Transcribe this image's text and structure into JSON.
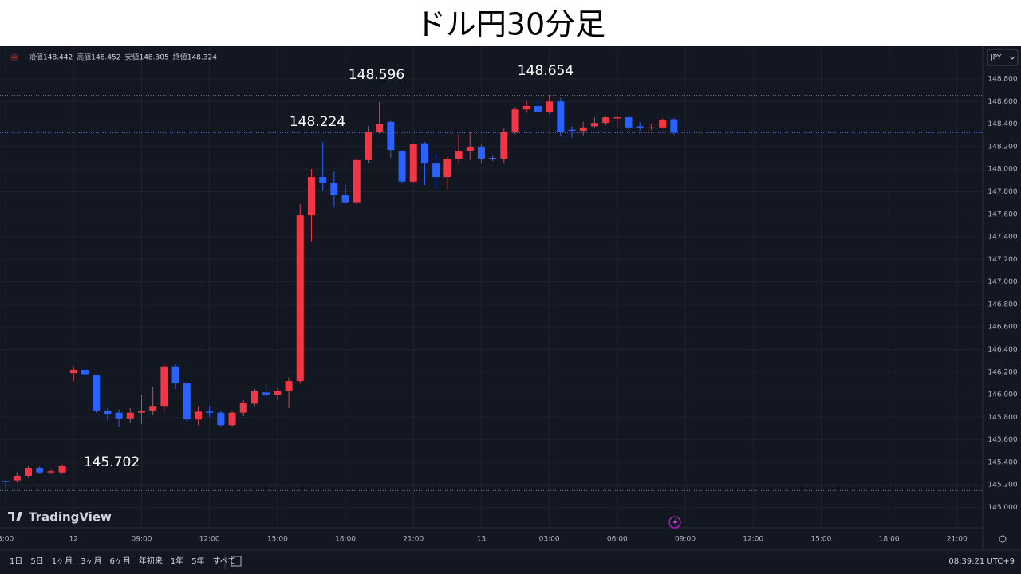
{
  "chart_data": {
    "type": "candlestick",
    "title": "ドル円30分足",
    "symbol": "JPY",
    "logo": "TradingView",
    "legend": [
      {
        "label": "始値",
        "value": 148.442
      },
      {
        "label": "高値",
        "value": 148.452
      },
      {
        "label": "安値",
        "value": 148.305
      },
      {
        "label": "終値",
        "value": 148.324
      }
    ],
    "annotations": [
      "148.596",
      "148.654",
      "148.224",
      "145.702"
    ],
    "up_color": "#f23645",
    "down_color": "#2962ff",
    "grid": true,
    "open": [
      145.235,
      145.24,
      145.28,
      145.35,
      145.31,
      145.31,
      146.19,
      146.22,
      146.17,
      145.86,
      145.84,
      145.79,
      145.84,
      145.86,
      145.9,
      146.25,
      146.1,
      145.78,
      145.85,
      145.84,
      145.73,
      145.84,
      145.92,
      146.02,
      146.0,
      146.03,
      146.12,
      147.59,
      147.93,
      147.88,
      147.77,
      147.7,
      148.08,
      148.33,
      148.42,
      148.16,
      147.89,
      148.23,
      148.05,
      147.93,
      148.09,
      148.16,
      148.2,
      148.1,
      148.09,
      148.33,
      148.53,
      148.56,
      148.51,
      148.6,
      148.35,
      148.34,
      148.38,
      148.41,
      148.45,
      148.46,
      148.38,
      148.37,
      148.37,
      148.442
    ],
    "high": [
      145.24,
      145.31,
      145.37,
      145.37,
      145.34,
      145.38,
      146.25,
      146.24,
      146.18,
      145.89,
      145.87,
      145.88,
      146.0,
      146.07,
      146.28,
      146.27,
      146.11,
      145.9,
      145.9,
      145.86,
      145.86,
      145.95,
      146.05,
      146.09,
      146.06,
      146.15,
      147.69,
      148.0,
      148.24,
      147.98,
      147.86,
      148.1,
      148.38,
      148.596,
      148.43,
      148.17,
      148.23,
      148.24,
      148.14,
      148.11,
      148.31,
      148.33,
      148.22,
      148.12,
      148.36,
      148.55,
      148.6,
      148.62,
      148.654,
      148.63,
      148.38,
      148.42,
      148.46,
      148.47,
      148.47,
      148.47,
      148.42,
      148.4,
      148.45,
      148.452
    ],
    "low": [
      145.17,
      145.22,
      145.27,
      145.3,
      145.3,
      145.3,
      146.12,
      146.15,
      145.84,
      145.77,
      145.71,
      145.75,
      145.74,
      145.82,
      145.85,
      146.05,
      145.76,
      145.73,
      145.8,
      145.72,
      145.72,
      145.81,
      145.9,
      145.97,
      145.95,
      145.88,
      146.1,
      147.36,
      147.81,
      147.66,
      147.69,
      147.68,
      148.05,
      148.32,
      148.1,
      147.88,
      147.88,
      147.86,
      147.83,
      147.82,
      148.05,
      148.08,
      148.05,
      148.07,
      148.05,
      148.31,
      148.5,
      148.5,
      148.49,
      148.29,
      148.28,
      148.3,
      148.37,
      148.39,
      148.37,
      148.35,
      148.34,
      148.35,
      148.36,
      148.305
    ],
    "close": [
      145.225,
      145.28,
      145.35,
      145.31,
      145.32,
      145.37,
      146.22,
      146.18,
      145.86,
      145.83,
      145.79,
      145.84,
      145.86,
      145.9,
      146.25,
      146.1,
      145.78,
      145.85,
      145.84,
      145.73,
      145.84,
      145.93,
      146.03,
      146.0,
      146.03,
      146.12,
      147.59,
      147.93,
      147.88,
      147.77,
      147.7,
      148.08,
      148.33,
      148.4,
      148.17,
      147.89,
      148.22,
      148.05,
      147.93,
      148.09,
      148.16,
      148.2,
      148.09,
      148.09,
      148.33,
      148.53,
      148.56,
      148.51,
      148.6,
      148.33,
      148.34,
      148.37,
      148.41,
      148.46,
      148.46,
      148.37,
      148.37,
      148.37,
      148.44,
      148.324
    ],
    "price_lines": [
      {
        "value": 148.654,
        "color": "#787b86"
      },
      {
        "value": 148.324,
        "color": "#5b6bd9"
      },
      {
        "value": 145.15,
        "color": "#787b86"
      }
    ],
    "ylim": [
      144.82,
      149.09
    ],
    "yticks": [
      {
        "value": 145.0,
        "label": "145.000"
      },
      {
        "value": 145.2,
        "label": "145.200"
      },
      {
        "value": 145.4,
        "label": "145.400"
      },
      {
        "value": 145.6,
        "label": "145.600"
      },
      {
        "value": 145.8,
        "label": "145.800"
      },
      {
        "value": 146.0,
        "label": "146.000"
      },
      {
        "value": 146.2,
        "label": "146.200"
      },
      {
        "value": 146.4,
        "label": "146.400"
      },
      {
        "value": 146.6,
        "label": "146.600"
      },
      {
        "value": 146.8,
        "label": "146.800"
      },
      {
        "value": 147.0,
        "label": "147.000"
      },
      {
        "value": 147.2,
        "label": "147.200"
      },
      {
        "value": 147.4,
        "label": "147.400"
      },
      {
        "value": 147.6,
        "label": "147.600"
      },
      {
        "value": 147.8,
        "label": "147.800"
      },
      {
        "value": 148.0,
        "label": "148.000"
      },
      {
        "value": 148.2,
        "label": "148.200"
      },
      {
        "value": 148.4,
        "label": "148.400"
      },
      {
        "value": 148.6,
        "label": "148.600"
      },
      {
        "value": 148.8,
        "label": "148.800"
      }
    ],
    "xlim": [
      -0.5,
      86.27
    ],
    "xticks": [
      {
        "value": 0,
        "label": "3:00"
      },
      {
        "value": 6,
        "label": "12"
      },
      {
        "value": 12,
        "label": "09:00"
      },
      {
        "value": 18,
        "label": "12:00"
      },
      {
        "value": 24,
        "label": "15:00"
      },
      {
        "value": 30,
        "label": "18:00"
      },
      {
        "value": 36,
        "label": "21:00"
      },
      {
        "value": 42,
        "label": "13"
      },
      {
        "value": 48,
        "label": "03:00"
      },
      {
        "value": 54,
        "label": "06:00"
      },
      {
        "value": 60,
        "label": "09:00"
      },
      {
        "value": 66,
        "label": "12:00"
      },
      {
        "value": 72,
        "label": "15:00"
      },
      {
        "value": 78,
        "label": "18:00"
      },
      {
        "value": 84,
        "label": "21:00"
      }
    ]
  },
  "toolbar": {
    "ranges": [
      "1日",
      "5日",
      "1ヶ月",
      "3ヶ月",
      "6ヶ月",
      "年初来",
      "1年",
      "5年",
      "すべて"
    ],
    "clock": "08:39:21 UTC+9"
  }
}
